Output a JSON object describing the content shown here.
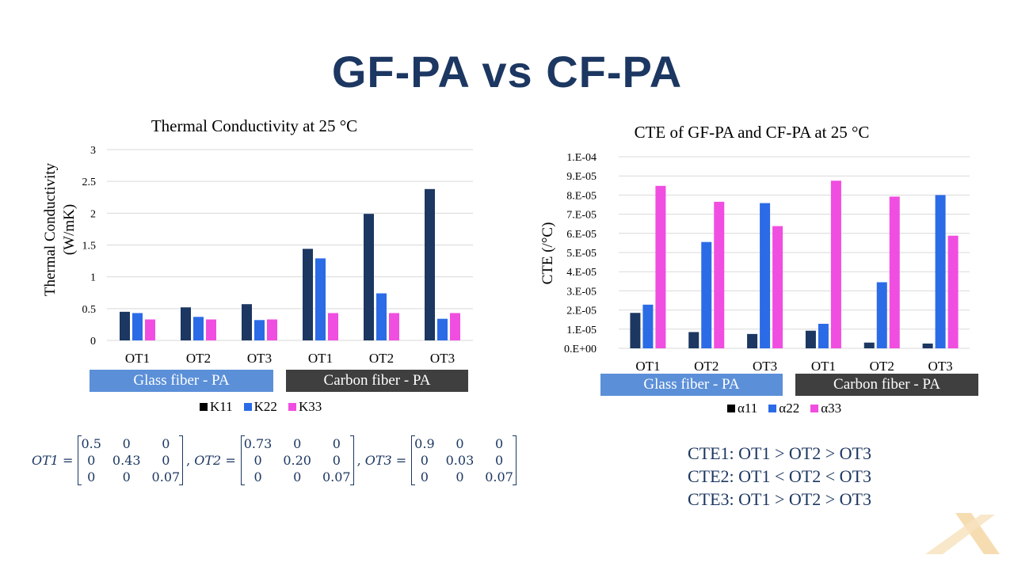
{
  "page_title": "GF-PA vs CF-PA",
  "chart_data": [
    {
      "type": "bar",
      "title": "Thermal Conductivity at 25 °C",
      "ylabel": "Thermal Conductivity (W/mK)",
      "xlabel": "",
      "ylim": [
        0,
        3
      ],
      "yticks": [
        "0",
        "0.5",
        "1",
        "1.5",
        "2",
        "2.5",
        "3"
      ],
      "ytick_values": [
        0,
        0.5,
        1,
        1.5,
        2,
        2.5,
        3
      ],
      "grid": true,
      "legend_position": "bottom",
      "categories": [
        "OT1",
        "OT2",
        "OT3",
        "OT1",
        "OT2",
        "OT3"
      ],
      "groups": [
        "Glass fiber - PA",
        "Carbon fiber - PA"
      ],
      "series": [
        {
          "name": "K11",
          "color": "#1c3761",
          "values": [
            0.45,
            0.52,
            0.57,
            1.44,
            1.99,
            2.38
          ]
        },
        {
          "name": "K22",
          "color": "#2b6be6",
          "values": [
            0.43,
            0.37,
            0.32,
            1.29,
            0.74,
            0.34
          ]
        },
        {
          "name": "K33",
          "color": "#f04ee0",
          "values": [
            0.33,
            0.33,
            0.33,
            0.43,
            0.43,
            0.43
          ]
        }
      ]
    },
    {
      "type": "bar",
      "title": "CTE of GF-PA and CF-PA at 25 °C",
      "ylabel": "CTE (/°C)",
      "xlabel": "",
      "ylim": [
        0,
        0.0001
      ],
      "yticks": [
        "0.E+00",
        "1.E-05",
        "2.E-05",
        "3.E-05",
        "4.E-05",
        "5.E-05",
        "6.E-05",
        "7.E-05",
        "8.E-05",
        "9.E-05",
        "1.E-04"
      ],
      "ytick_values": [
        0,
        1e-05,
        2e-05,
        3e-05,
        4e-05,
        5e-05,
        6e-05,
        7e-05,
        8e-05,
        9e-05,
        0.0001
      ],
      "grid": true,
      "legend_position": "bottom",
      "categories": [
        "OT1",
        "OT2",
        "OT3",
        "OT1",
        "OT2",
        "OT3"
      ],
      "groups": [
        "Glass fiber - PA",
        "Carbon fiber - PA"
      ],
      "series": [
        {
          "name": "α11",
          "color": "#1c3761",
          "values": [
            1.85e-05,
            8.5e-06,
            7.5e-06,
            9.2e-06,
            3e-06,
            2.5e-06
          ]
        },
        {
          "name": "α22",
          "color": "#2b6be6",
          "values": [
            2.28e-05,
            5.55e-05,
            7.58e-05,
            1.28e-05,
            3.45e-05,
            8e-05
          ]
        },
        {
          "name": "α33",
          "color": "#f04ee0",
          "values": [
            8.48e-05,
            7.65e-05,
            6.38e-05,
            8.75e-05,
            7.92e-05,
            5.88e-05
          ]
        }
      ]
    }
  ],
  "group_colors": [
    "#5b8fd8",
    "#3f3f3f"
  ],
  "matrices": [
    {
      "label": "OT1 =",
      "rows": [
        [
          "0.5",
          "0",
          "0"
        ],
        [
          "0",
          "0.43",
          "0"
        ],
        [
          "0",
          "0",
          "0.07"
        ]
      ]
    },
    {
      "label": "OT2 =",
      "rows": [
        [
          "0.73",
          "0",
          "0"
        ],
        [
          "0",
          "0.20",
          "0"
        ],
        [
          "0",
          "0",
          "0.07"
        ]
      ]
    },
    {
      "label": "OT3 =",
      "rows": [
        [
          "0.9",
          "0",
          "0"
        ],
        [
          "0",
          "0.03",
          "0"
        ],
        [
          "0",
          "0",
          "0.07"
        ]
      ]
    }
  ],
  "cte_relations": [
    "CTE1: OT1 > OT2 > OT3",
    "CTE2: OT1 < OT2 < OT3",
    "CTE3: OT1 > OT2 > OT3"
  ],
  "watermark_icon": "x-logo-icon"
}
